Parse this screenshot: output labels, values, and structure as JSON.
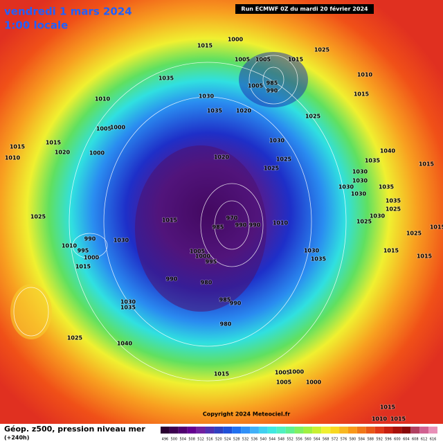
{
  "header": {
    "title": "vendredi 1 mars 2024",
    "subtitle": "1:00 locale",
    "run": "Run ECMWF 0Z du mardi 20 février 2024"
  },
  "footer": {
    "caption": "Géop. z500, pression niveau mer",
    "lead": "(+240h)",
    "copyright": "Copyright 2024 Meteociel.fr"
  },
  "scale_labels": [
    496,
    500,
    504,
    508,
    512,
    516,
    520,
    524,
    528,
    532,
    536,
    540,
    544,
    548,
    552,
    556,
    560,
    564,
    568,
    572,
    576,
    580,
    584,
    588,
    592,
    596,
    600,
    604,
    608,
    612,
    616
  ],
  "isobar_labels": [
    1015,
    1000,
    1005,
    1015,
    1025,
    1005,
    1035,
    1030,
    1005,
    985,
    990,
    1010,
    1015,
    1010,
    1005,
    1000,
    1015,
    1020,
    1015,
    1010,
    1000,
    1035,
    1020,
    1025,
    1030,
    1020,
    1025,
    1025,
    1040,
    1035,
    1030,
    1030,
    1030,
    1030,
    1035,
    1035,
    1025,
    1025,
    1015,
    1015,
    1030,
    1025,
    1015,
    1015,
    1025,
    990,
    1030,
    1015,
    985,
    970,
    990,
    990,
    1010,
    1030,
    1035,
    1005,
    1000,
    995,
    990,
    980,
    985,
    990,
    980,
    1010,
    995,
    1000,
    1015,
    1030,
    1035,
    1025,
    1040,
    1015,
    1005,
    1000,
    1005,
    1000,
    1015,
    1010,
    1015
  ]
}
